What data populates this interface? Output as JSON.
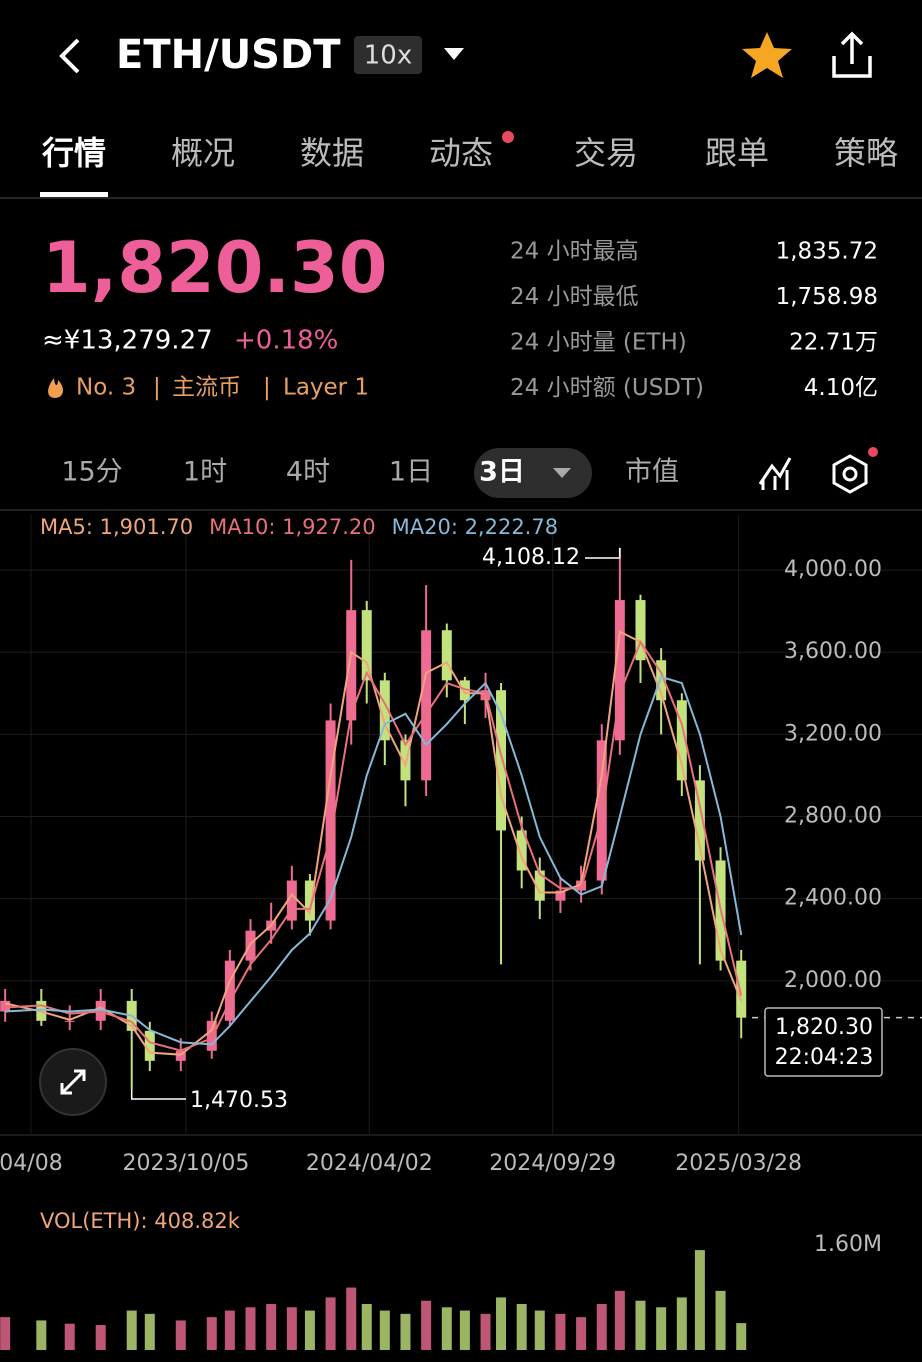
{
  "header": {
    "title": "ETH/USDT",
    "leverage": "10x"
  },
  "tabs": {
    "items": [
      "行情",
      "概况",
      "数据",
      "动态",
      "交易",
      "跟单",
      "策略"
    ],
    "active": 0,
    "dot": 3
  },
  "ticker": {
    "price": "1,820.30",
    "cny": "≈¥13,279.27",
    "change": "+0.18%",
    "rank": "No. 3",
    "tags": [
      "主流币",
      "Layer 1"
    ],
    "stats": [
      {
        "label": "24 小时最高",
        "value": "1,835.72"
      },
      {
        "label": "24 小时最低",
        "value": "1,758.98"
      },
      {
        "label": "24 小时量 (ETH)",
        "value": "22.71万"
      },
      {
        "label": "24 小时额 (USDT)",
        "value": "4.10亿"
      }
    ]
  },
  "intervals": {
    "items": [
      "15分",
      "1时",
      "4时",
      "1日",
      "3日",
      "市值"
    ],
    "active": 4
  },
  "chart_data": [
    {
      "type": "candlestick",
      "up_color": "#ee6b93",
      "down_color": "#c3e27e",
      "candles": {
        "x": [
          -10,
          4,
          15,
          27,
          39,
          46,
          58,
          70,
          77,
          85,
          93,
          101,
          108,
          116,
          124,
          130,
          137,
          145,
          153,
          161,
          168,
          176,
          182,
          190,
          197,
          205,
          213,
          221,
          228,
          236,
          244,
          252,
          259,
          267,
          275
        ],
        "open": [
          1850,
          1902,
          1805,
          1805,
          1902,
          1756,
          1610,
          1659,
          1805,
          2098,
          2244,
          2293,
          2488,
          2293,
          3268,
          3805,
          3463,
          3171,
          2976,
          3707,
          3463,
          3366,
          3415,
          2732,
          2537,
          2390,
          2439,
          2488,
          3171,
          3854,
          3561,
          3366,
          2976,
          2586,
          2098
        ],
        "high": [
          1960,
          1960,
          1880,
          1960,
          1960,
          1800,
          1720,
          1850,
          2150,
          2300,
          2380,
          2560,
          2520,
          3350,
          4050,
          3850,
          3500,
          3200,
          3927,
          3740,
          3480,
          3500,
          3450,
          2800,
          2600,
          2500,
          2560,
          3250,
          4108.12,
          3880,
          3620,
          3400,
          3050,
          2650,
          2150
        ],
        "low": [
          1800,
          1780,
          1760,
          1760,
          1470.53,
          1560,
          1560,
          1620,
          1780,
          2050,
          2180,
          2250,
          2220,
          2250,
          3150,
          3350,
          3050,
          2850,
          2900,
          3380,
          3250,
          3280,
          2080,
          2450,
          2300,
          2330,
          2380,
          2420,
          3100,
          3450,
          3200,
          2900,
          2080,
          2050,
          1720
        ],
        "close": [
          1902,
          1805,
          1805,
          1902,
          1756,
          1610,
          1659,
          1805,
          2098,
          2244,
          2293,
          2488,
          2293,
          3268,
          3805,
          3463,
          3171,
          2976,
          3707,
          3463,
          3366,
          3415,
          2732,
          2537,
          2390,
          2439,
          2488,
          3171,
          3854,
          3561,
          3366,
          2976,
          2586,
          2098,
          1820.3
        ]
      },
      "ma": [
        {
          "label": "MA5: 1,901.70",
          "color": "#f0a57a",
          "values": [
            1890,
            1850,
            1810,
            1870,
            1780,
            1650,
            1640,
            1760,
            2000,
            2180,
            2270,
            2420,
            2330,
            3000,
            3600,
            3550,
            3250,
            3050,
            3500,
            3550,
            3400,
            3400,
            2900,
            2600,
            2430,
            2430,
            2470,
            3000,
            3700,
            3650,
            3400,
            3050,
            2650,
            2150,
            1901.7
          ]
        },
        {
          "label": "MA10: 1,927.20",
          "color": "#e8707a",
          "values": [
            1870,
            1880,
            1840,
            1850,
            1800,
            1700,
            1660,
            1720,
            1900,
            2080,
            2200,
            2350,
            2350,
            2700,
            3300,
            3500,
            3350,
            3150,
            3300,
            3450,
            3420,
            3400,
            3100,
            2750,
            2520,
            2450,
            2450,
            2800,
            3400,
            3650,
            3500,
            3250,
            2850,
            2350,
            1927.2
          ]
        },
        {
          "label": "MA20: 2,222.78",
          "color": "#86b8d8",
          "values": [
            1850,
            1860,
            1850,
            1860,
            1830,
            1760,
            1700,
            1690,
            1780,
            1900,
            2020,
            2150,
            2230,
            2400,
            2700,
            3000,
            3250,
            3300,
            3150,
            3250,
            3350,
            3450,
            3300,
            3000,
            2700,
            2500,
            2420,
            2460,
            2800,
            3200,
            3480,
            3450,
            3200,
            2800,
            2222.78
          ]
        }
      ],
      "xlim": [
        -12,
        345
      ],
      "ylim": [
        1250,
        4270
      ],
      "yticks": [
        {
          "value": 2000,
          "label": "2,000.00"
        },
        {
          "value": 2400,
          "label": "2,400.00"
        },
        {
          "value": 2800,
          "label": "2,800.00"
        },
        {
          "value": 3200,
          "label": "3,200.00"
        },
        {
          "value": 3600,
          "label": "3,600.00"
        },
        {
          "value": 4000,
          "label": "4,000.00"
        }
      ],
      "xticks": [
        {
          "value": 0,
          "label": "04/08"
        },
        {
          "value": 60,
          "label": "2023/10/05"
        },
        {
          "value": 131,
          "label": "2024/04/02"
        },
        {
          "value": 202,
          "label": "2024/09/29"
        },
        {
          "value": 274,
          "label": "2025/03/28"
        }
      ],
      "high_mark": {
        "value": 4108.12,
        "label": "4,108.12"
      },
      "low_mark": {
        "value": 1470.53,
        "label": "1,470.53"
      },
      "last": {
        "value": 1820.3,
        "label": "1,820.30",
        "time": "22:04:23"
      }
    },
    {
      "type": "bar",
      "title": "VOL(ETH): 408.82k",
      "values": [
        500,
        450,
        400,
        380,
        600,
        550,
        450,
        500,
        600,
        650,
        700,
        650,
        600,
        800,
        950,
        700,
        600,
        550,
        750,
        650,
        600,
        550,
        800,
        700,
        600,
        550,
        500,
        700,
        900,
        750,
        650,
        800,
        1520,
        900,
        408.82
      ],
      "ylim": [
        0,
        2130
      ],
      "yticks": [
        {
          "value": 1600,
          "label": "1.60M"
        }
      ]
    }
  ]
}
